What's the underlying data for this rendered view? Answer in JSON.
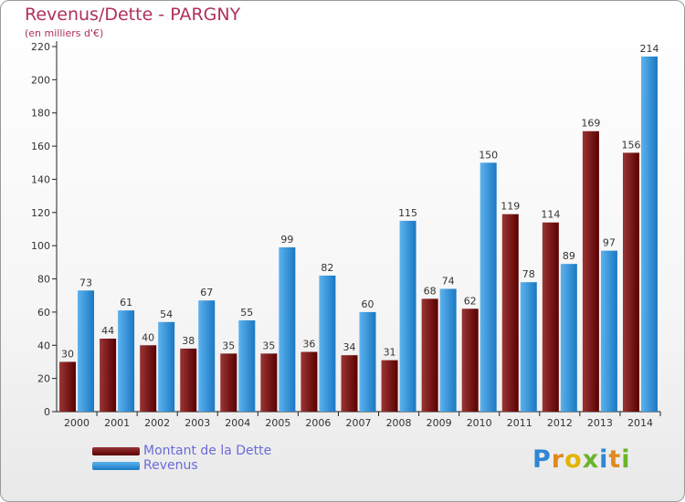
{
  "header": {
    "title": "Revenus/Dette - PARGNY",
    "subtitle": "(en milliers d'€)"
  },
  "logo": {
    "letters": [
      "P",
      "r",
      "o",
      "x",
      "i",
      "t",
      "i"
    ]
  },
  "colors": {
    "debt_dark": "#5a0000",
    "debt_light": "#9a3535",
    "rev_dark": "#1a78c2",
    "rev_light": "#5cb2ee",
    "axis": "#222222",
    "label": "#333333"
  },
  "chart_data": {
    "type": "bar",
    "title": "Revenus/Dette - PARGNY",
    "ylabel": "(en milliers d'€)",
    "xlabel": "",
    "ylim": [
      0,
      220
    ],
    "yticks": [
      0,
      20,
      40,
      60,
      80,
      100,
      120,
      140,
      160,
      180,
      200,
      220
    ],
    "categories": [
      "2000",
      "2001",
      "2002",
      "2003",
      "2004",
      "2005",
      "2006",
      "2007",
      "2008",
      "2009",
      "2010",
      "2011",
      "2012",
      "2013",
      "2014"
    ],
    "series": [
      {
        "name": "Montant de la Dette",
        "values": [
          30,
          44,
          40,
          38,
          35,
          35,
          36,
          34,
          31,
          68,
          62,
          119,
          114,
          169,
          156
        ]
      },
      {
        "name": "Revenus",
        "values": [
          73,
          61,
          54,
          67,
          55,
          99,
          82,
          60,
          115,
          74,
          150,
          78,
          89,
          97,
          214
        ]
      }
    ],
    "legend_position": "bottom-left",
    "grid": false
  }
}
